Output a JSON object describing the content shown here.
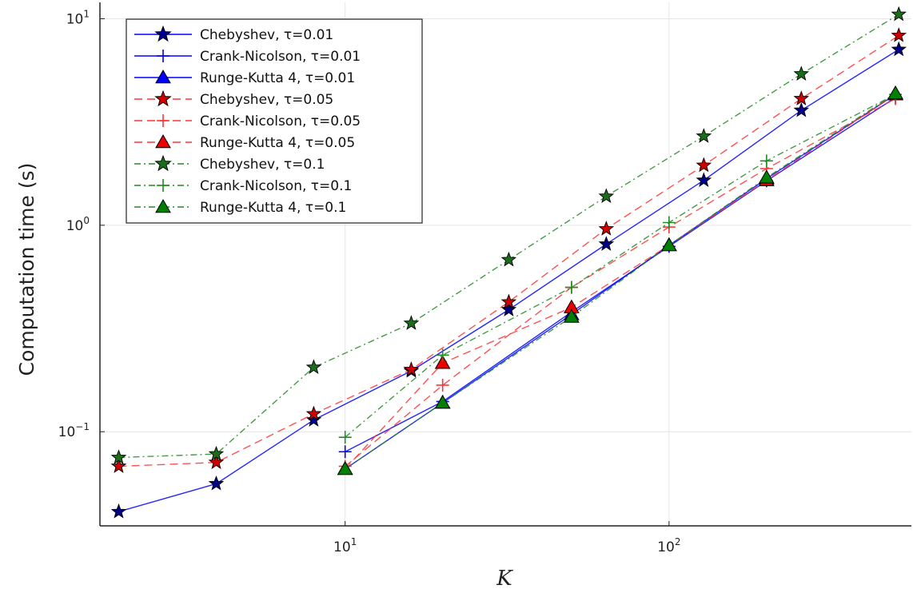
{
  "chart_data": {
    "type": "line",
    "xscale": "log",
    "yscale": "log",
    "xlabel": "K",
    "ylabel": "Computation time (s)",
    "xlim": [
      1.75,
      560
    ],
    "ylim": [
      0.035,
      12
    ],
    "x_ticks": [
      {
        "value": 10,
        "base": "10",
        "exp": "1"
      },
      {
        "value": 100,
        "base": "10",
        "exp": "2"
      }
    ],
    "y_ticks": [
      {
        "value": 0.1,
        "base": "10",
        "exp": "−1"
      },
      {
        "value": 1,
        "base": "10",
        "exp": "0"
      },
      {
        "value": 10,
        "base": "10",
        "exp": "1"
      }
    ],
    "grid": true,
    "legend_position": "top-left",
    "series": [
      {
        "name": "Chebyshev, τ=0.01",
        "color": "#0000ff",
        "fill": "#00008b",
        "dash": "solid",
        "marker": "star",
        "x": [
          2,
          4,
          8,
          16,
          32,
          64,
          128,
          256,
          512
        ],
        "y": [
          0.041,
          0.056,
          0.114,
          0.197,
          0.39,
          0.81,
          1.65,
          3.6,
          7.1
        ]
      },
      {
        "name": "Crank-Nicolson, τ=0.01",
        "color": "#0000ff",
        "fill": "#0000ff",
        "dash": "solid",
        "marker": "cross",
        "x": [
          10,
          20,
          50,
          100,
          200,
          500
        ],
        "y": [
          0.08,
          0.14,
          0.38,
          0.79,
          1.64,
          4.15
        ]
      },
      {
        "name": "Runge-Kutta 4, τ=0.01",
        "color": "#0000ff",
        "fill": "#0000ff",
        "dash": "solid",
        "marker": "triangle",
        "x": [
          10,
          20,
          50,
          100,
          200,
          500
        ],
        "y": [
          0.066,
          0.138,
          0.37,
          0.8,
          1.68,
          4.3
        ]
      },
      {
        "name": "Chebyshev, τ=0.05",
        "color": "#ff3333",
        "fill": "#d00000",
        "dash": "dash",
        "marker": "star",
        "x": [
          2,
          4,
          8,
          16,
          32,
          64,
          128,
          256,
          512
        ],
        "y": [
          0.068,
          0.071,
          0.122,
          0.2,
          0.425,
          0.96,
          1.95,
          4.1,
          8.3
        ]
      },
      {
        "name": "Crank-Nicolson, τ=0.05",
        "color": "#ff3333",
        "fill": "#ff3333",
        "dash": "dash",
        "marker": "cross",
        "x": [
          10,
          20,
          50,
          100,
          200,
          500
        ],
        "y": [
          0.068,
          0.168,
          0.5,
          0.98,
          1.88,
          4.1
        ]
      },
      {
        "name": "Runge-Kutta 4, τ=0.05",
        "color": "#ff3333",
        "fill": "#ee0000",
        "dash": "dash",
        "marker": "triangle",
        "x": [
          10,
          20,
          50,
          100,
          200,
          500
        ],
        "y": [
          0.066,
          0.215,
          0.4,
          0.8,
          1.65,
          4.3
        ]
      },
      {
        "name": "Chebyshev, τ=0.1",
        "color": "#228b22",
        "fill": "#1a6e1a",
        "dash": "dashdot",
        "marker": "star",
        "x": [
          2,
          4,
          8,
          16,
          32,
          64,
          128,
          256,
          512
        ],
        "y": [
          0.075,
          0.078,
          0.205,
          0.335,
          0.68,
          1.38,
          2.7,
          5.4,
          10.5
        ]
      },
      {
        "name": "Crank-Nicolson, τ=0.1",
        "color": "#228b22",
        "fill": "#228b22",
        "dash": "dashdot",
        "marker": "cross",
        "x": [
          10,
          20,
          50,
          100,
          200,
          500
        ],
        "y": [
          0.094,
          0.235,
          0.5,
          1.03,
          2.05,
          4.3
        ]
      },
      {
        "name": "Runge-Kutta 4, τ=0.1",
        "color": "#228b22",
        "fill": "#008000",
        "dash": "dashdot",
        "marker": "triangle",
        "x": [
          10,
          20,
          50,
          100,
          200,
          500
        ],
        "y": [
          0.066,
          0.138,
          0.36,
          0.8,
          1.7,
          4.35
        ]
      }
    ]
  }
}
